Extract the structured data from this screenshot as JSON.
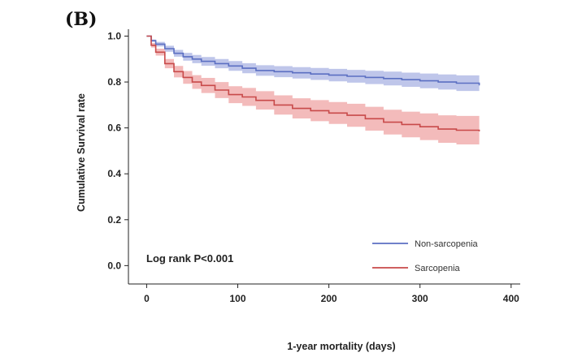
{
  "panel_label": "(B)",
  "chart_data": {
    "type": "line",
    "title": "",
    "xlabel": "1-year mortality (days)",
    "ylabel": "Cumulative Survival rate",
    "xlim": [
      -20,
      410
    ],
    "ylim": [
      -0.08,
      1.03
    ],
    "xticks": [
      0,
      100,
      200,
      300,
      400
    ],
    "xtick_labels": [
      "0",
      "100",
      "200",
      "300",
      "400"
    ],
    "yticks": [
      0.0,
      0.2,
      0.4,
      0.6,
      0.8,
      1.0
    ],
    "ytick_labels": [
      "0.0",
      "0.2",
      "0.4",
      "0.6",
      "0.8",
      "1.0"
    ],
    "grid": false,
    "legend_position": "bottom-right",
    "annotation": "Log rank P<0.001",
    "series": [
      {
        "name": "Non-sarcopenia",
        "color": "#5b6fc2",
        "band_color": "#aab3e3",
        "x": [
          0,
          5,
          10,
          20,
          30,
          40,
          50,
          60,
          75,
          90,
          105,
          120,
          140,
          160,
          180,
          200,
          220,
          240,
          260,
          280,
          300,
          320,
          340,
          365
        ],
        "y": [
          1.0,
          0.98,
          0.965,
          0.945,
          0.925,
          0.91,
          0.9,
          0.89,
          0.88,
          0.87,
          0.86,
          0.85,
          0.845,
          0.84,
          0.835,
          0.83,
          0.825,
          0.82,
          0.815,
          0.81,
          0.805,
          0.8,
          0.795,
          0.785
        ],
        "lower": [
          1.0,
          0.975,
          0.955,
          0.932,
          0.91,
          0.893,
          0.882,
          0.871,
          0.86,
          0.849,
          0.838,
          0.827,
          0.821,
          0.815,
          0.809,
          0.803,
          0.797,
          0.791,
          0.785,
          0.779,
          0.773,
          0.767,
          0.761,
          0.75
        ],
        "upper": [
          1.0,
          0.985,
          0.975,
          0.958,
          0.94,
          0.927,
          0.918,
          0.909,
          0.9,
          0.891,
          0.882,
          0.873,
          0.869,
          0.865,
          0.861,
          0.857,
          0.853,
          0.849,
          0.845,
          0.841,
          0.837,
          0.833,
          0.829,
          0.82
        ]
      },
      {
        "name": "Sarcopenia",
        "color": "#c84a4a",
        "band_color": "#efa4a4",
        "x": [
          0,
          5,
          10,
          20,
          30,
          40,
          50,
          60,
          75,
          90,
          105,
          120,
          140,
          160,
          180,
          200,
          220,
          240,
          260,
          280,
          300,
          320,
          340,
          365
        ],
        "y": [
          1.0,
          0.96,
          0.93,
          0.88,
          0.845,
          0.82,
          0.8,
          0.785,
          0.765,
          0.745,
          0.735,
          0.72,
          0.7,
          0.685,
          0.675,
          0.665,
          0.655,
          0.64,
          0.625,
          0.615,
          0.605,
          0.595,
          0.59,
          0.585
        ],
        "lower": [
          1.0,
          0.95,
          0.915,
          0.86,
          0.82,
          0.792,
          0.77,
          0.752,
          0.73,
          0.708,
          0.696,
          0.68,
          0.658,
          0.641,
          0.629,
          0.617,
          0.605,
          0.588,
          0.571,
          0.559,
          0.547,
          0.535,
          0.528,
          0.52
        ],
        "upper": [
          1.0,
          0.97,
          0.945,
          0.9,
          0.87,
          0.848,
          0.83,
          0.818,
          0.8,
          0.782,
          0.774,
          0.76,
          0.742,
          0.729,
          0.721,
          0.713,
          0.705,
          0.692,
          0.679,
          0.671,
          0.663,
          0.655,
          0.652,
          0.65
        ]
      }
    ]
  }
}
